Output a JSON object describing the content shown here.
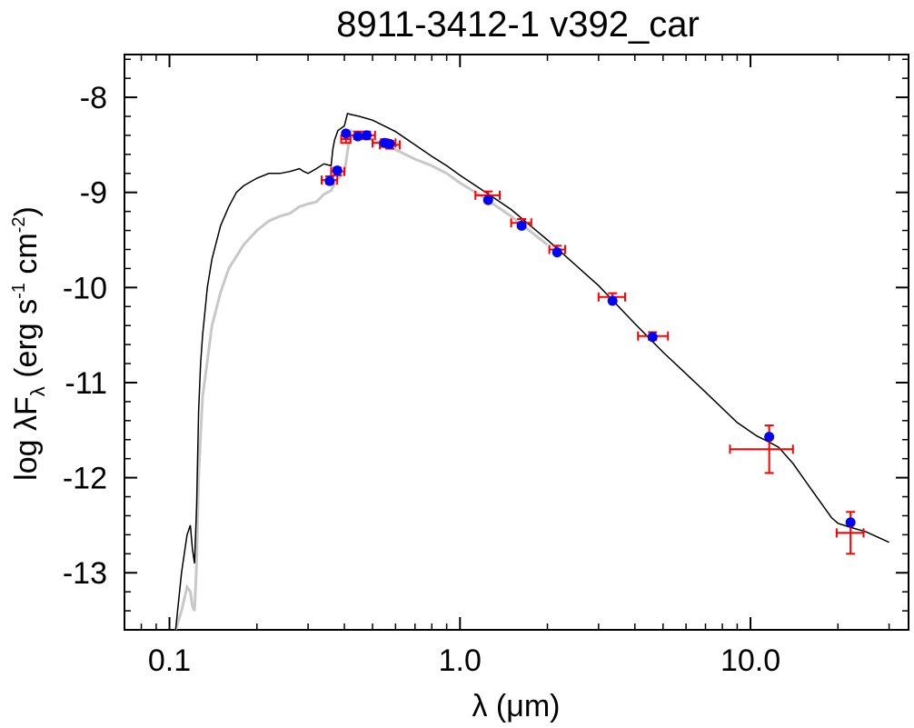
{
  "chart_data": {
    "type": "scatter",
    "title": "8911-3412-1   v392_car",
    "xlabel": "λ (μm)",
    "ylabel": {
      "main": "log λF",
      "sub": "λ",
      "unit_open": " (erg s",
      "exp1": "-1",
      "unit_mid": " cm",
      "exp2": "-2",
      "unit_close": ")"
    },
    "xscale": "log",
    "xlim": [
      0.07,
      35
    ],
    "ylim": [
      -13.6,
      -7.55
    ],
    "xticks": [
      {
        "value": 0.1,
        "label": "0.1"
      },
      {
        "value": 1.0,
        "label": "1.0"
      },
      {
        "value": 10.0,
        "label": "10.0"
      }
    ],
    "yticks": [
      {
        "value": -8,
        "label": "-8"
      },
      {
        "value": -9,
        "label": "-9"
      },
      {
        "value": -10,
        "label": "-10"
      },
      {
        "value": -11,
        "label": "-11"
      },
      {
        "value": -12,
        "label": "-12"
      },
      {
        "value": -13,
        "label": "-13"
      }
    ],
    "grid": false,
    "colors": {
      "model_reddened": "#000000",
      "model_unreddened": "#c8c8c8",
      "observed": "#ff0000",
      "model_points": "#0000ff"
    },
    "series": [
      {
        "name": "model (black)",
        "x": [
          0.105,
          0.11,
          0.115,
          0.118,
          0.12,
          0.122,
          0.124,
          0.126,
          0.128,
          0.13,
          0.135,
          0.14,
          0.15,
          0.16,
          0.17,
          0.18,
          0.2,
          0.22,
          0.24,
          0.26,
          0.28,
          0.29,
          0.3,
          0.32,
          0.34,
          0.36,
          0.365,
          0.37,
          0.38,
          0.4,
          0.41,
          0.42,
          0.45,
          0.5,
          0.6,
          0.7,
          0.8,
          0.9,
          1.0,
          1.2,
          1.5,
          2.0,
          3.0,
          4.0,
          5.0,
          7.0,
          9.0,
          10.5,
          11.5,
          12.5,
          14.0,
          16.0,
          18.0,
          19.0,
          20.0,
          22.0,
          25.0,
          30.0
        ],
        "y": [
          -13.6,
          -13.0,
          -12.6,
          -12.5,
          -12.75,
          -12.9,
          -12.3,
          -11.3,
          -10.8,
          -10.5,
          -10.0,
          -9.7,
          -9.35,
          -9.15,
          -9.0,
          -8.93,
          -8.85,
          -8.8,
          -8.8,
          -8.78,
          -8.75,
          -8.78,
          -8.8,
          -8.75,
          -8.7,
          -8.72,
          -8.55,
          -8.45,
          -8.35,
          -8.3,
          -8.17,
          -8.18,
          -8.2,
          -8.24,
          -8.36,
          -8.5,
          -8.62,
          -8.72,
          -8.82,
          -8.98,
          -9.18,
          -9.5,
          -9.98,
          -10.38,
          -10.68,
          -11.1,
          -11.42,
          -11.56,
          -11.62,
          -11.68,
          -11.85,
          -12.1,
          -12.32,
          -12.42,
          -12.48,
          -12.52,
          -12.57,
          -12.68
        ]
      },
      {
        "name": "model (grey)",
        "x": [
          0.105,
          0.11,
          0.115,
          0.118,
          0.12,
          0.122,
          0.124,
          0.126,
          0.128,
          0.13,
          0.14,
          0.15,
          0.16,
          0.18,
          0.2,
          0.22,
          0.24,
          0.26,
          0.28,
          0.3,
          0.32,
          0.34,
          0.36,
          0.38,
          0.4,
          0.42,
          0.45,
          0.5,
          0.6,
          0.7,
          0.8,
          0.9,
          1.0,
          1.2,
          1.5,
          2.0
        ],
        "y": [
          -13.6,
          -13.4,
          -13.15,
          -13.2,
          -13.35,
          -13.4,
          -12.9,
          -12.0,
          -11.55,
          -11.15,
          -10.4,
          -10.05,
          -9.8,
          -9.55,
          -9.4,
          -9.3,
          -9.25,
          -9.22,
          -9.15,
          -9.12,
          -9.1,
          -9.02,
          -8.98,
          -8.85,
          -8.8,
          -8.35,
          -8.4,
          -8.45,
          -8.55,
          -8.65,
          -8.72,
          -8.8,
          -8.9,
          -9.05,
          -9.25,
          -9.55
        ]
      },
      {
        "name": "observed",
        "x": [
          0.356,
          0.378,
          0.405,
          0.445,
          0.477,
          0.55,
          0.573,
          1.25,
          1.63,
          2.16,
          3.35,
          4.6,
          11.6,
          22.1
        ],
        "y": [
          -8.87,
          -8.78,
          -8.44,
          -8.4,
          -8.4,
          -8.48,
          -8.5,
          -9.03,
          -9.32,
          -9.6,
          -10.1,
          -10.51,
          -11.7,
          -12.58
        ],
        "xerr_low": [
          0.334,
          0.36,
          0.39,
          0.41,
          0.445,
          0.5,
          0.53,
          1.13,
          1.5,
          2.03,
          3.0,
          4.1,
          8.5,
          19.8
        ],
        "xerr_high": [
          0.378,
          0.4,
          0.42,
          0.48,
          0.51,
          0.6,
          0.62,
          1.37,
          1.76,
          2.3,
          3.7,
          5.2,
          14.0,
          24.5
        ],
        "yerr": [
          0.04,
          0.04,
          0.04,
          0.04,
          0.04,
          0.04,
          0.04,
          0.04,
          0.04,
          0.04,
          0.04,
          0.04,
          0.25,
          0.22
        ]
      },
      {
        "name": "model points",
        "x": [
          0.356,
          0.378,
          0.405,
          0.445,
          0.477,
          0.55,
          0.573,
          1.25,
          1.63,
          2.16,
          3.35,
          4.6,
          11.6,
          22.1
        ],
        "y": [
          -8.88,
          -8.77,
          -8.38,
          -8.41,
          -8.4,
          -8.48,
          -8.49,
          -9.08,
          -9.35,
          -9.63,
          -10.14,
          -10.52,
          -11.57,
          -12.47
        ]
      }
    ]
  }
}
